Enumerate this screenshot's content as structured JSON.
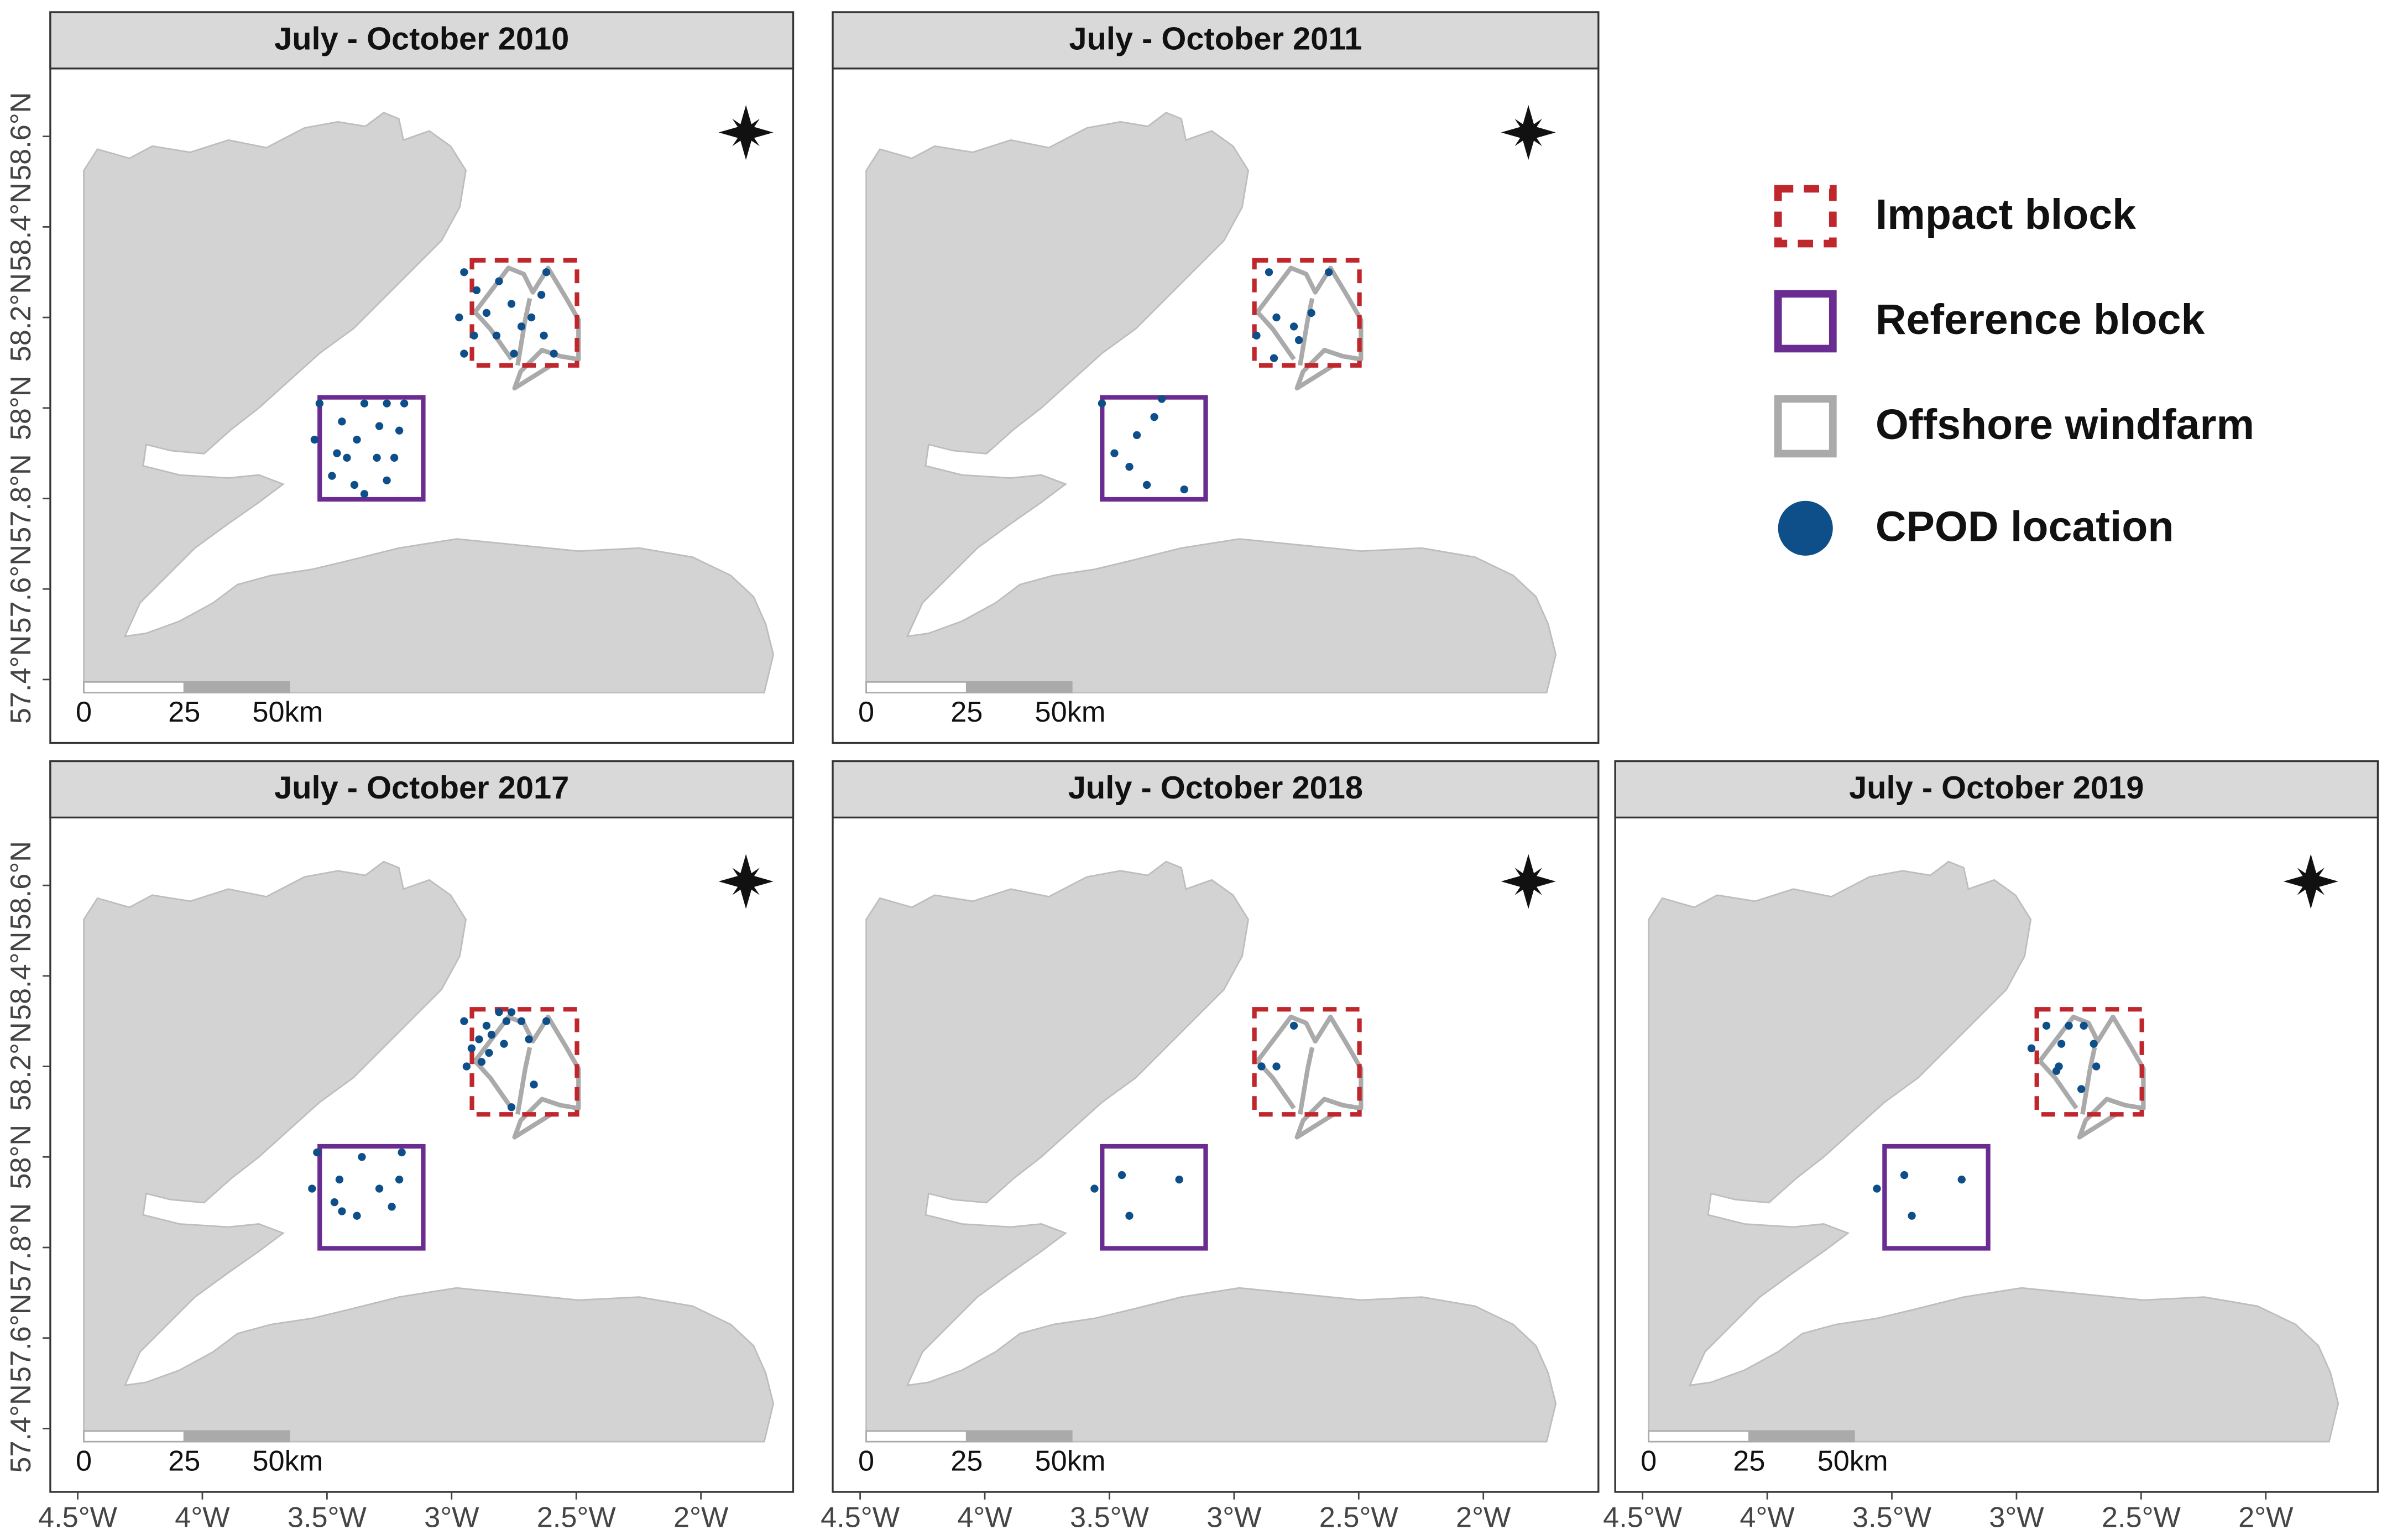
{
  "map": {
    "panels": [
      {
        "title": "July - October 2010",
        "lon": [
          -2.95,
          -2.81,
          -2.62,
          -2.86,
          -2.76,
          -2.68,
          -2.97,
          -2.91,
          -2.82,
          -2.72,
          -2.63,
          -2.95,
          -2.75,
          -2.59,
          -2.9,
          -2.64,
          -3.53,
          -3.44,
          -3.35,
          -3.26,
          -3.19,
          -3.55,
          -3.46,
          -3.38,
          -3.3,
          -3.23,
          -3.21,
          -3.48,
          -3.39,
          -3.26,
          -3.35,
          -3.42,
          -3.29
        ],
        "lat": [
          58.3,
          58.28,
          58.3,
          58.21,
          58.23,
          58.2,
          58.2,
          58.16,
          58.16,
          58.18,
          58.16,
          58.12,
          58.12,
          58.12,
          58.26,
          58.25,
          58.01,
          57.97,
          58.01,
          58.01,
          58.01,
          57.93,
          57.9,
          57.93,
          57.89,
          57.89,
          57.95,
          57.85,
          57.83,
          57.84,
          57.81,
          57.89,
          57.96
        ]
      },
      {
        "title": "July - October 2011",
        "lon": [
          -2.86,
          -2.62,
          -2.69,
          -2.83,
          -2.76,
          -2.91,
          -2.74,
          -2.84,
          -3.53,
          -3.29,
          -3.32,
          -3.39,
          -3.48,
          -3.42,
          -3.35,
          -3.2
        ],
        "lat": [
          58.3,
          58.3,
          58.21,
          58.2,
          58.18,
          58.16,
          58.15,
          58.11,
          58.01,
          58.02,
          57.98,
          57.94,
          57.9,
          57.87,
          57.83,
          57.82
        ]
      },
      {
        "title": "July - October 2017",
        "lon": [
          -2.95,
          -2.81,
          -2.76,
          -2.86,
          -2.89,
          -2.84,
          -2.78,
          -2.72,
          -2.92,
          -2.85,
          -2.79,
          -2.94,
          -2.88,
          -2.69,
          -2.62,
          -2.67,
          -2.76,
          -3.54,
          -3.36,
          -3.2,
          -3.45,
          -3.29,
          -3.21,
          -3.56,
          -3.47,
          -3.38,
          -3.24,
          -3.44
        ],
        "lat": [
          58.3,
          58.32,
          58.32,
          58.29,
          58.26,
          58.27,
          58.3,
          58.3,
          58.24,
          58.23,
          58.25,
          58.2,
          58.21,
          58.26,
          58.3,
          58.16,
          58.11,
          58.01,
          58.0,
          58.01,
          57.95,
          57.93,
          57.95,
          57.93,
          57.9,
          57.87,
          57.89,
          57.88
        ]
      },
      {
        "title": "July - October 2018",
        "lon": [
          -2.76,
          -2.89,
          -2.83,
          -3.45,
          -3.56,
          -3.42,
          -3.22
        ],
        "lat": [
          58.29,
          58.2,
          58.2,
          57.96,
          57.93,
          57.87,
          57.95
        ]
      },
      {
        "title": "July - October 2019",
        "lon": [
          -2.88,
          -2.79,
          -2.73,
          -2.94,
          -2.82,
          -2.69,
          -2.83,
          -2.68,
          -2.74,
          -2.84,
          -3.45,
          -3.56,
          -3.42,
          -3.22
        ],
        "lat": [
          58.29,
          58.29,
          58.29,
          58.24,
          58.25,
          58.25,
          58.2,
          58.2,
          58.15,
          58.19,
          57.96,
          57.93,
          57.87,
          57.95
        ]
      }
    ],
    "xlim": [
      -4.61,
      -1.63
    ],
    "ylim": [
      57.26,
      58.75
    ],
    "xticks": [
      {
        "value": -4.5,
        "label": "4.5°W"
      },
      {
        "value": -4,
        "label": "4°W"
      },
      {
        "value": -3.5,
        "label": "3.5°W"
      },
      {
        "value": -3,
        "label": "3°W"
      },
      {
        "value": -2.5,
        "label": "2.5°W"
      },
      {
        "value": -2,
        "label": "2°W"
      }
    ],
    "yticks": [
      {
        "value": 57.4,
        "label": "57.4°N"
      },
      {
        "value": 57.6,
        "label": "57.6°N"
      },
      {
        "value": 57.8,
        "label": "57.8°N"
      },
      {
        "value": 58,
        "label": "58°N"
      },
      {
        "value": 58.2,
        "label": "58.2°N"
      },
      {
        "value": 58.4,
        "label": "58.4°N"
      },
      {
        "value": 58.6,
        "label": "58.6°N"
      }
    ],
    "scale_labels": [
      "0",
      "25",
      "50km"
    ],
    "point_color": "#0e4f8a",
    "legend": [
      "Impact block",
      "Reference block",
      "Offshore windfarm",
      "CPOD location"
    ]
  }
}
